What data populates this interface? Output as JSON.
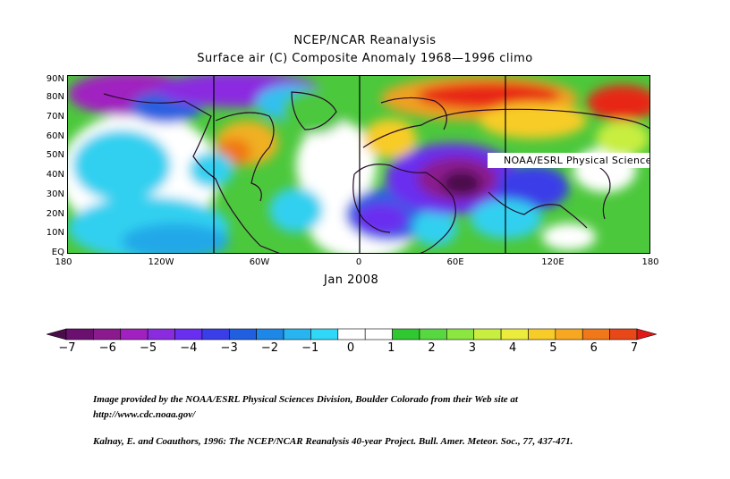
{
  "title_line1": "NCEP/NCAR Reanalysis",
  "title_line2": "Surface air (C) Composite Anomaly 1968—1996 climo",
  "map_credit": "NOAA/ESRL Physical Sciences Division",
  "lat_labels": [
    "90N",
    "80N",
    "70N",
    "60N",
    "50N",
    "40N",
    "30N",
    "20N",
    "10N",
    "EQ"
  ],
  "lon_labels": [
    "180",
    "120W",
    "60W",
    "0",
    "60E",
    "120E",
    "180"
  ],
  "date_label": "Jan 2008",
  "colorbar": {
    "labels": [
      "-7",
      "-6",
      "-5",
      "-4",
      "-3",
      "-2",
      "-1",
      "0",
      "1",
      "2",
      "3",
      "4",
      "5",
      "6",
      "7"
    ],
    "colors": [
      "#4a0d4a",
      "#6b1070",
      "#8b1a8e",
      "#a020c0",
      "#8b2be0",
      "#6a2ef0",
      "#3a3ee8",
      "#2060e0",
      "#1e88e8",
      "#28b4f0",
      "#30d8f8",
      "#ffffff",
      "#ffffff",
      "#30c830",
      "#58d840",
      "#8ce640",
      "#c8ee40",
      "#ecec3c",
      "#f8cc28",
      "#f8a820",
      "#f07818",
      "#e84818",
      "#e01818"
    ]
  },
  "footer": {
    "line1": "Image provided by the NOAA/ESRL Physical Sciences Division, Boulder Colorado from their Web site at",
    "line2": "http://www.cdc.noaa.gov/",
    "line3": "Kalnay, E. and Coauthors, 1996: The NCEP/NCAR Reanalysis 40-year Project. Bull. Amer. Meteor. Soc., 77, 437-471."
  },
  "colors": {
    "land_line": "#2a0a2a",
    "frame": "#000000"
  }
}
